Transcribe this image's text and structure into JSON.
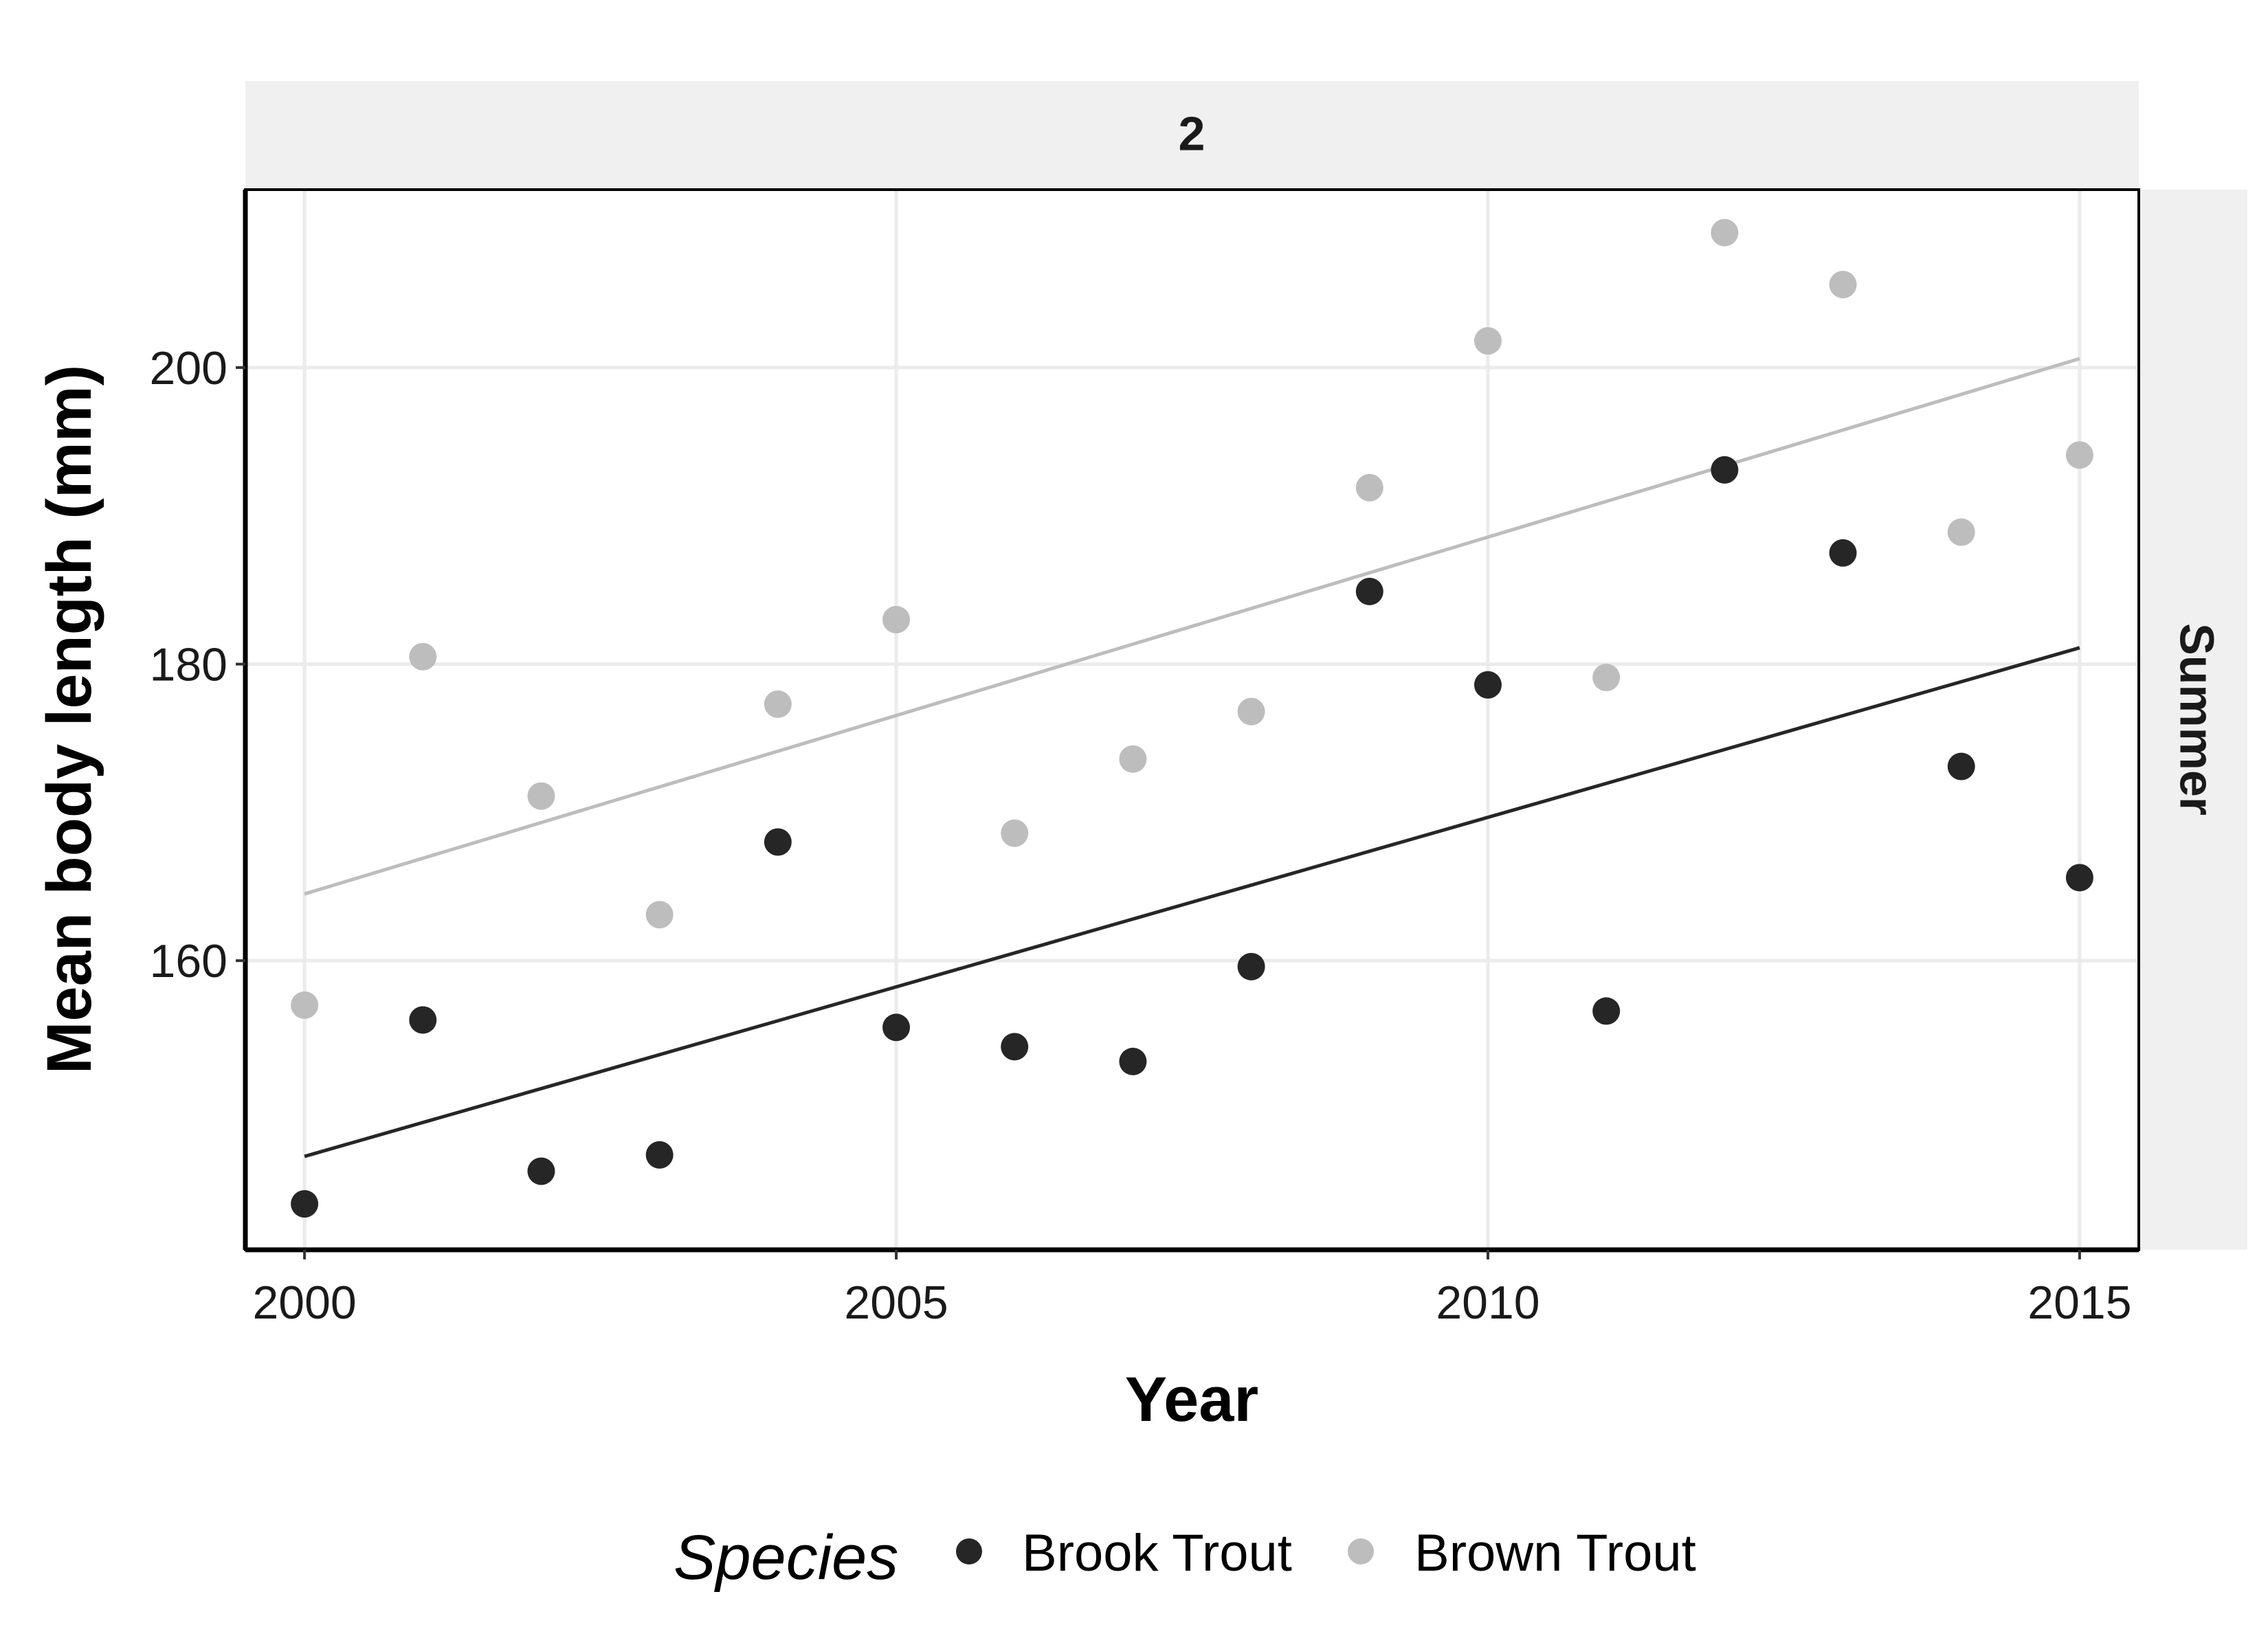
{
  "chart_data": {
    "type": "scatter",
    "facet_top": "2",
    "facet_right": "Summer",
    "xlabel": "Year",
    "ylabel": "Mean body length (mm)",
    "xlim": [
      1999.5,
      2015.5
    ],
    "ylim": [
      140.5,
      212
    ],
    "x_ticks": [
      2000,
      2005,
      2010,
      2015
    ],
    "y_ticks": [
      160,
      180,
      200
    ],
    "grid": true,
    "legend": {
      "title": "Species",
      "position": "bottom"
    },
    "series": [
      {
        "name": "Brook Trout",
        "color": "#262626",
        "x": [
          2000,
          2001,
          2002,
          2003,
          2004,
          2005,
          2006,
          2007,
          2008,
          2009,
          2010,
          2011,
          2012,
          2013,
          2014,
          2015
        ],
        "y": [
          143.6,
          156.0,
          145.8,
          146.9,
          168.0,
          155.5,
          154.2,
          153.2,
          159.6,
          184.9,
          178.6,
          156.6,
          193.1,
          187.5,
          173.1,
          165.6
        ],
        "trend": {
          "x": [
            2000,
            2015
          ],
          "y": [
            146.8,
            181.1
          ]
        }
      },
      {
        "name": "Brown Trout",
        "color": "#bdbdbd",
        "x": [
          2000,
          2001,
          2002,
          2003,
          2004,
          2005,
          2006,
          2007,
          2008,
          2009,
          2010,
          2011,
          2012,
          2013,
          2014,
          2015
        ],
        "y": [
          157.0,
          180.5,
          171.1,
          163.1,
          177.3,
          183.0,
          168.6,
          173.6,
          176.8,
          191.9,
          201.8,
          179.1,
          209.1,
          205.6,
          188.9,
          194.1
        ],
        "trend": {
          "x": [
            2000,
            2015
          ],
          "y": [
            164.5,
            200.6
          ]
        }
      }
    ]
  }
}
